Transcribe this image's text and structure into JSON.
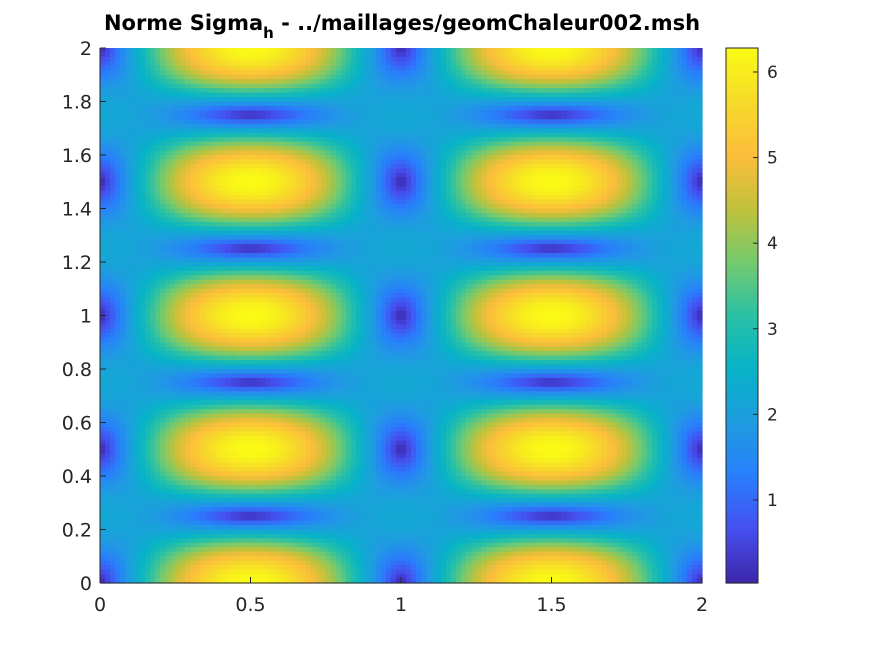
{
  "chart_data": {
    "type": "heatmap",
    "title": {
      "main": "Norme Sigma",
      "subscript": "h",
      "suffix": " - ../maillages/geomChaleur002.msh"
    },
    "xlabel": "",
    "ylabel": "",
    "xlim": [
      0,
      2
    ],
    "ylim": [
      0,
      2
    ],
    "x_ticks": [
      {
        "value": 0,
        "label": "0"
      },
      {
        "value": 0.5,
        "label": "0.5"
      },
      {
        "value": 1,
        "label": "1"
      },
      {
        "value": 1.5,
        "label": "1.5"
      },
      {
        "value": 2,
        "label": "2"
      }
    ],
    "y_ticks": [
      {
        "value": 0,
        "label": "0"
      },
      {
        "value": 0.2,
        "label": "0.2"
      },
      {
        "value": 0.4,
        "label": "0.4"
      },
      {
        "value": 0.6,
        "label": "0.6"
      },
      {
        "value": 0.8,
        "label": "0.8"
      },
      {
        "value": 1,
        "label": "1"
      },
      {
        "value": 1.2,
        "label": "1.2"
      },
      {
        "value": 1.4,
        "label": "1.4"
      },
      {
        "value": 1.6,
        "label": "1.6"
      },
      {
        "value": 1.8,
        "label": "1.8"
      },
      {
        "value": 2,
        "label": "2"
      }
    ],
    "colorbar": {
      "colormap": "parula",
      "clim": [
        0.03,
        6.28
      ],
      "ticks": [
        {
          "value": 1,
          "label": "1"
        },
        {
          "value": 2,
          "label": "2"
        },
        {
          "value": 3,
          "label": "3"
        },
        {
          "value": 4,
          "label": "4"
        },
        {
          "value": 5,
          "label": "5"
        },
        {
          "value": 6,
          "label": "6"
        }
      ]
    },
    "field": {
      "description_pattern": "periodic magnitude field; maxima near 6.2 at x=0.5,1.5 and y=0,0.5,1,1.5,2; minima near 0 at x=0,1,2 and y=0.5,1,1.5 and at x=0.5,1.5 and y=0.25,0.75,1.25,1.75",
      "grid_nx": 120,
      "grid_ny": 120
    },
    "grid": false,
    "legend": "none"
  },
  "colors": {
    "axis": "#262626",
    "background": "#ffffff"
  }
}
